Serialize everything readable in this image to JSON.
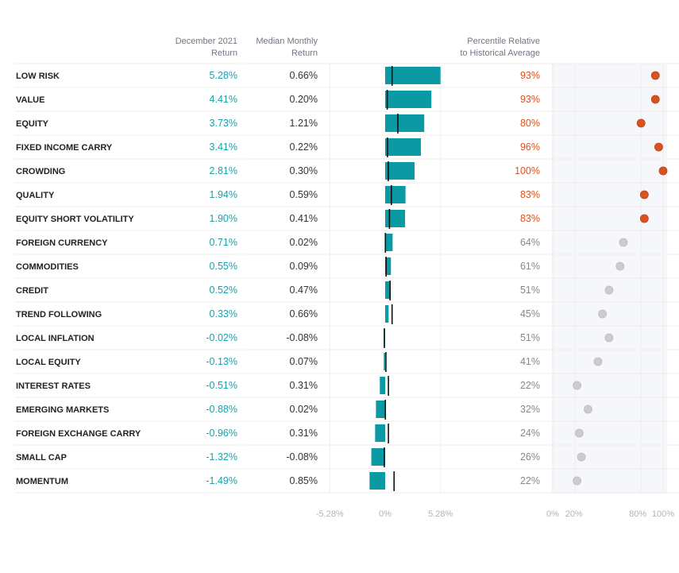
{
  "chart_data": {
    "type": "table",
    "headers": {
      "dec_return": [
        "December 2021",
        "Return"
      ],
      "median_return": [
        "Median Monthly",
        "Return"
      ],
      "percentile": [
        "Percentile Relative",
        "to Historical Average"
      ]
    },
    "bar_axis": {
      "ticks": [
        "-5.28%",
        "0%",
        "5.28%"
      ],
      "range": [
        -5.28,
        5.28
      ]
    },
    "pct_axis": {
      "ticks": [
        "0%",
        "20%",
        "80%",
        "100%"
      ],
      "range": [
        0,
        100
      ]
    },
    "colors": {
      "bar": "#0b9aa4",
      "high": "#d9531e",
      "neutral": "#cccccc",
      "return_text": "#1aa0ab",
      "median_text": "#333333",
      "pct_high_text": "#d9531e",
      "pct_neutral_text": "#888888"
    },
    "rows": [
      {
        "label": "LOW RISK",
        "dec": "5.28%",
        "dec_value": 5.28,
        "median": "0.66%",
        "median_value": 0.66,
        "pct": "93%",
        "pct_value": 93,
        "highlight": true
      },
      {
        "label": "VALUE",
        "dec": "4.41%",
        "dec_value": 4.41,
        "median": "0.20%",
        "median_value": 0.2,
        "pct": "93%",
        "pct_value": 93,
        "highlight": true
      },
      {
        "label": "EQUITY",
        "dec": "3.73%",
        "dec_value": 3.73,
        "median": "1.21%",
        "median_value": 1.21,
        "pct": "80%",
        "pct_value": 80,
        "highlight": true
      },
      {
        "label": "FIXED INCOME CARRY",
        "dec": "3.41%",
        "dec_value": 3.41,
        "median": "0.22%",
        "median_value": 0.22,
        "pct": "96%",
        "pct_value": 96,
        "highlight": true
      },
      {
        "label": "CROWDING",
        "dec": "2.81%",
        "dec_value": 2.81,
        "median": "0.30%",
        "median_value": 0.3,
        "pct": "100%",
        "pct_value": 100,
        "highlight": true
      },
      {
        "label": "QUALITY",
        "dec": "1.94%",
        "dec_value": 1.94,
        "median": "0.59%",
        "median_value": 0.59,
        "pct": "83%",
        "pct_value": 83,
        "highlight": true
      },
      {
        "label": "EQUITY SHORT VOLATILITY",
        "dec": "1.90%",
        "dec_value": 1.9,
        "median": "0.41%",
        "median_value": 0.41,
        "pct": "83%",
        "pct_value": 83,
        "highlight": true
      },
      {
        "label": "FOREIGN CURRENCY",
        "dec": "0.71%",
        "dec_value": 0.71,
        "median": "0.02%",
        "median_value": 0.02,
        "pct": "64%",
        "pct_value": 64,
        "highlight": false
      },
      {
        "label": "COMMODITIES",
        "dec": "0.55%",
        "dec_value": 0.55,
        "median": "0.09%",
        "median_value": 0.09,
        "pct": "61%",
        "pct_value": 61,
        "highlight": false
      },
      {
        "label": "CREDIT",
        "dec": "0.52%",
        "dec_value": 0.52,
        "median": "0.47%",
        "median_value": 0.47,
        "pct": "51%",
        "pct_value": 51,
        "highlight": false
      },
      {
        "label": "TREND FOLLOWING",
        "dec": "0.33%",
        "dec_value": 0.33,
        "median": "0.66%",
        "median_value": 0.66,
        "pct": "45%",
        "pct_value": 45,
        "highlight": false
      },
      {
        "label": "LOCAL INFLATION",
        "dec": "-0.02%",
        "dec_value": -0.02,
        "median": "-0.08%",
        "median_value": -0.08,
        "pct": "51%",
        "pct_value": 51,
        "highlight": false
      },
      {
        "label": "LOCAL EQUITY",
        "dec": "-0.13%",
        "dec_value": -0.13,
        "median": "0.07%",
        "median_value": 0.07,
        "pct": "41%",
        "pct_value": 41,
        "highlight": false
      },
      {
        "label": "INTEREST RATES",
        "dec": "-0.51%",
        "dec_value": -0.51,
        "median": "0.31%",
        "median_value": 0.31,
        "pct": "22%",
        "pct_value": 22,
        "highlight": false
      },
      {
        "label": "EMERGING MARKETS",
        "dec": "-0.88%",
        "dec_value": -0.88,
        "median": "0.02%",
        "median_value": 0.02,
        "pct": "32%",
        "pct_value": 32,
        "highlight": false
      },
      {
        "label": "FOREIGN EXCHANGE CARRY",
        "dec": "-0.96%",
        "dec_value": -0.96,
        "median": "0.31%",
        "median_value": 0.31,
        "pct": "24%",
        "pct_value": 24,
        "highlight": false
      },
      {
        "label": "SMALL CAP",
        "dec": "-1.32%",
        "dec_value": -1.32,
        "median": "-0.08%",
        "median_value": -0.08,
        "pct": "26%",
        "pct_value": 26,
        "highlight": false
      },
      {
        "label": "MOMENTUM",
        "dec": "-1.49%",
        "dec_value": -1.49,
        "median": "0.85%",
        "median_value": 0.85,
        "pct": "22%",
        "pct_value": 22,
        "highlight": false
      }
    ]
  }
}
